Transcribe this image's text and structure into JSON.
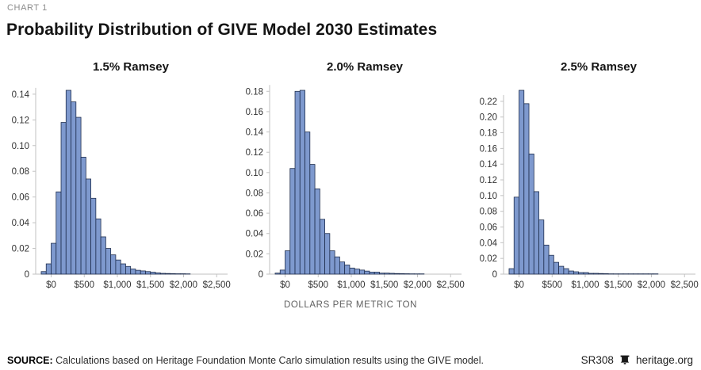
{
  "header": {
    "kicker": "CHART 1",
    "title": "Probability Distribution of GIVE Model 2030 Estimates"
  },
  "colors": {
    "bar_fill": "#7E99CE",
    "bar_stroke": "#1F2E4E",
    "axis_line": "#C2C2C2",
    "tick_label": "#333333"
  },
  "chart_data": {
    "type": "histogram",
    "title": "Probability Distribution of GIVE Model 2030 Estimates",
    "x_axis_label": "DOLLARS PER METRIC TON",
    "x_tick_values": [
      0,
      500,
      1000,
      1500,
      2000,
      2500
    ],
    "x_tick_labels": [
      "$0",
      "$500",
      "$1,000",
      "$1,500",
      "$2,000",
      "$2,500"
    ],
    "xlim": [
      -250,
      2600
    ],
    "bin_width": 75,
    "grid": false,
    "legend": "none",
    "charts": [
      {
        "title": "1.5% Ramsey",
        "bin_start": -150,
        "y_tick_values": [
          0,
          0.02,
          0.04,
          0.06,
          0.08,
          0.1,
          0.12,
          0.14
        ],
        "y_tick_labels": [
          "0",
          "0.02",
          "0.04",
          "0.06",
          "0.08",
          "0.10",
          "0.12",
          "0.14"
        ],
        "values": [
          0.002,
          0.008,
          0.024,
          0.064,
          0.118,
          0.143,
          0.134,
          0.122,
          0.091,
          0.074,
          0.059,
          0.043,
          0.029,
          0.02,
          0.015,
          0.011,
          0.008,
          0.006,
          0.004,
          0.003,
          0.0025,
          0.002,
          0.0015,
          0.001,
          0.0006,
          0.0005,
          0.0004,
          0.0003,
          0.0003,
          0.0002
        ]
      },
      {
        "title": "2.0% Ramsey",
        "bin_start": -150,
        "y_tick_values": [
          0,
          0.02,
          0.04,
          0.06,
          0.08,
          0.1,
          0.12,
          0.14,
          0.16,
          0.18
        ],
        "y_tick_labels": [
          "0",
          "0.02",
          "0.04",
          "0.06",
          "0.08",
          "0.10",
          "0.12",
          "0.14",
          "0.16",
          "0.18"
        ],
        "values": [
          0.001,
          0.004,
          0.023,
          0.104,
          0.18,
          0.181,
          0.14,
          0.108,
          0.084,
          0.054,
          0.04,
          0.023,
          0.017,
          0.012,
          0.009,
          0.006,
          0.005,
          0.004,
          0.003,
          0.002,
          0.002,
          0.001,
          0.001,
          0.0008,
          0.0006,
          0.0005,
          0.0004,
          0.0003,
          0.0002,
          0.0002
        ]
      },
      {
        "title": "2.5% Ramsey",
        "bin_start": -150,
        "y_tick_values": [
          0,
          0.02,
          0.04,
          0.06,
          0.08,
          0.1,
          0.12,
          0.14,
          0.16,
          0.18,
          0.2,
          0.22
        ],
        "y_tick_labels": [
          "0",
          "0.02",
          "0.04",
          "0.06",
          "0.08",
          "0.10",
          "0.12",
          "0.14",
          "0.16",
          "0.18",
          "0.20",
          "0.22"
        ],
        "values": [
          0.007,
          0.098,
          0.234,
          0.217,
          0.153,
          0.105,
          0.069,
          0.037,
          0.024,
          0.015,
          0.01,
          0.007,
          0.004,
          0.003,
          0.002,
          0.002,
          0.001,
          0.001,
          0.0008,
          0.0006,
          0.0004,
          0.0003,
          0.0003,
          0.0002,
          0.0002,
          0.0001,
          0.0001,
          0.0001,
          0.0001,
          0.0001
        ]
      }
    ]
  },
  "footer": {
    "source_label": "SOURCE:",
    "source_text": " Calculations based on Heritage Foundation Monte Carlo simulation results using the GIVE model.",
    "doc_id": "SR308",
    "bell_icon": "liberty-bell-icon",
    "site": "heritage.org"
  }
}
